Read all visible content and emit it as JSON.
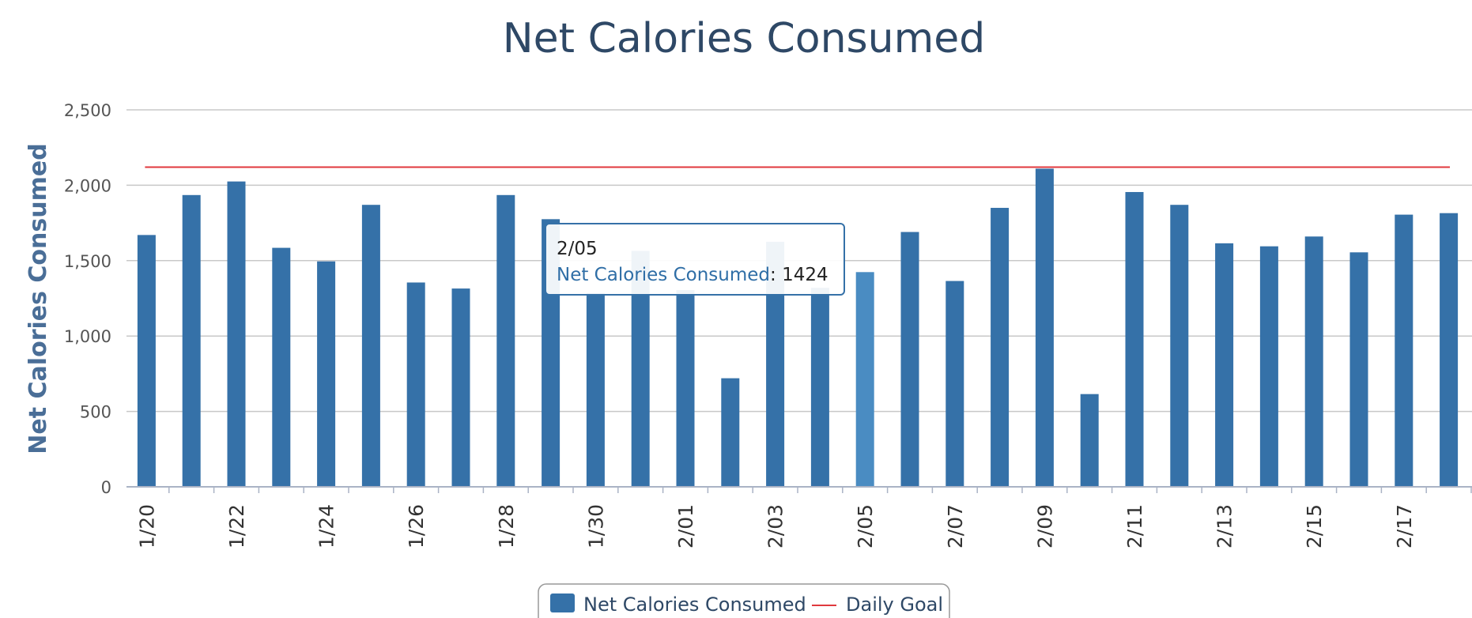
{
  "chart_data": {
    "type": "bar",
    "title": "Net Calories Consumed",
    "ylabel": "Net Calories Consumed",
    "xlabel": "",
    "ylim": [
      0,
      2500
    ],
    "yticks": [
      0,
      500,
      1000,
      1500,
      2000,
      2500
    ],
    "ytick_labels": [
      "0",
      "500",
      "1,000",
      "1,500",
      "2,000",
      "2,500"
    ],
    "categories": [
      "1/20",
      "1/21",
      "1/22",
      "1/23",
      "1/24",
      "1/25",
      "1/26",
      "1/27",
      "1/28",
      "1/29",
      "1/30",
      "1/31",
      "2/01",
      "2/02",
      "2/03",
      "2/04",
      "2/05",
      "2/06",
      "2/07",
      "2/08",
      "2/09",
      "2/10",
      "2/11",
      "2/12",
      "2/13",
      "2/14",
      "2/15",
      "2/16",
      "2/17",
      "2/18"
    ],
    "xtick_labels": [
      "1/20",
      "",
      "1/22",
      "",
      "1/24",
      "",
      "1/26",
      "",
      "1/28",
      "",
      "1/30",
      "",
      "2/01",
      "",
      "2/03",
      "",
      "2/05",
      "",
      "2/07",
      "",
      "2/09",
      "",
      "2/11",
      "",
      "2/13",
      "",
      "2/15",
      "",
      "2/17",
      ""
    ],
    "series": [
      {
        "name": "Net Calories Consumed",
        "values": [
          1670,
          1935,
          2025,
          1585,
          1495,
          1870,
          1355,
          1315,
          1935,
          1775,
          1285,
          1565,
          1305,
          720,
          1625,
          1320,
          1424,
          1690,
          1365,
          1850,
          2110,
          615,
          1955,
          1870,
          1615,
          1595,
          1660,
          1555,
          1805,
          1815
        ],
        "color": "#3571a8"
      }
    ],
    "goal_line": {
      "name": "Daily Goal",
      "value": 2120,
      "color": "#e0393e"
    },
    "highlighted_index": 16,
    "highlight_color": "#4a8cc2",
    "grid": true,
    "legend": {
      "placement": "bottom-center",
      "items": [
        "Net Calories Consumed",
        "Daily Goal"
      ]
    },
    "tooltip": {
      "date": "2/05",
      "series": "Net Calories Consumed",
      "value": "1424"
    }
  }
}
